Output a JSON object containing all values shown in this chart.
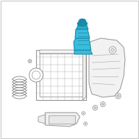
{
  "bg_color": "#ffffff",
  "border_color": "#d0d0d0",
  "line_color": "#b0b0b0",
  "dark_line": "#909090",
  "highlight_color": "#2aadcc",
  "highlight_dark": "#1a8aaa",
  "highlight_fill": "#3abcdc",
  "fig_width": 2.0,
  "fig_height": 2.0,
  "dpi": 100
}
